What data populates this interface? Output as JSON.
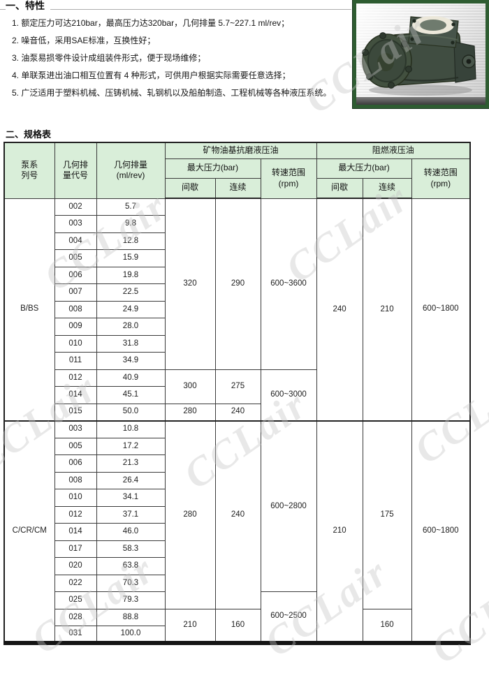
{
  "sections": {
    "features_title": "一、特性",
    "spec_title": "二、规格表"
  },
  "features": {
    "items": [
      "1. 额定压力可达210bar，最高压力达320bar，几何排量 5.7~227.1 ml/rev；",
      "2. 噪音低，采用SAE标准，互换性好；",
      "3. 油泵易损零件设计成组装件形式，便于现场维修；",
      "4. 单联泵进出油口相互位置有 4 种形式，可供用户根据实际需要任意选择；",
      "5. 广泛适用于塑料机械、压铸机械、轧钢机以及船舶制造、工程机械等各种液压系统。"
    ]
  },
  "watermark": {
    "text": "CCLair"
  },
  "photo": {
    "name": "vane-pump-photo",
    "frame_color": "#2e5c31"
  },
  "colors": {
    "header_bg": "#d9eed9",
    "table_border": "#3a3a3a",
    "watermark": "#c4c4c4"
  },
  "spec_table": {
    "header": {
      "pump_series": "泵系\n列号",
      "displacement_code": "几何排\n量代号",
      "displacement": "几何排量\n(ml/rev)",
      "mineral_oil_group": "矿物油基抗磨液压油",
      "fire_resistant_group": "阻燃液压油",
      "max_pressure": "最大压力(bar)",
      "speed_range": "转速范围\n(rpm)",
      "intermittent": "间歇",
      "continuous": "连续"
    },
    "rows": [
      {
        "cells": [
          {
            "v": "B/BS",
            "rs": 13,
            "name": "series-label"
          },
          {
            "v": "002"
          },
          {
            "v": "5.7"
          },
          {
            "v": "320",
            "rs": 10
          },
          {
            "v": "290",
            "rs": 10
          },
          {
            "v": "600~3600",
            "rs": 10
          },
          {
            "v": "240",
            "rs": 13
          },
          {
            "v": "210",
            "rs": 13
          },
          {
            "v": "600~1800",
            "rs": 13
          }
        ]
      },
      {
        "cells": [
          {
            "v": "003"
          },
          {
            "v": "9.8"
          }
        ]
      },
      {
        "cells": [
          {
            "v": "004"
          },
          {
            "v": "12.8"
          }
        ]
      },
      {
        "cells": [
          {
            "v": "005"
          },
          {
            "v": "15.9"
          }
        ]
      },
      {
        "cells": [
          {
            "v": "006"
          },
          {
            "v": "19.8"
          }
        ]
      },
      {
        "cells": [
          {
            "v": "007"
          },
          {
            "v": "22.5"
          }
        ]
      },
      {
        "cells": [
          {
            "v": "008"
          },
          {
            "v": "24.9"
          }
        ]
      },
      {
        "cells": [
          {
            "v": "009"
          },
          {
            "v": "28.0"
          }
        ]
      },
      {
        "cells": [
          {
            "v": "010"
          },
          {
            "v": "31.8"
          }
        ]
      },
      {
        "cells": [
          {
            "v": "011"
          },
          {
            "v": "34.9"
          }
        ]
      },
      {
        "cells": [
          {
            "v": "012"
          },
          {
            "v": "40.9"
          },
          {
            "v": "300",
            "rs": 2
          },
          {
            "v": "275",
            "rs": 2
          },
          {
            "v": "600~3000",
            "rs": 3
          }
        ]
      },
      {
        "cells": [
          {
            "v": "014"
          },
          {
            "v": "45.1"
          }
        ]
      },
      {
        "cells": [
          {
            "v": "015"
          },
          {
            "v": "50.0"
          },
          {
            "v": "280"
          },
          {
            "v": "240"
          }
        ]
      },
      {
        "section_start": true,
        "cells": [
          {
            "v": "C/CR/CM",
            "rs": 13,
            "name": "series-label"
          },
          {
            "v": "003"
          },
          {
            "v": "10.8"
          },
          {
            "v": "280",
            "rs": 11
          },
          {
            "v": "240",
            "rs": 11
          },
          {
            "v": "600~2800",
            "rs": 10
          },
          {
            "v": "210",
            "rs": 13
          },
          {
            "v": "175",
            "rs": 11
          },
          {
            "v": "600~1800",
            "rs": 13
          }
        ]
      },
      {
        "cells": [
          {
            "v": "005"
          },
          {
            "v": "17.2"
          }
        ]
      },
      {
        "cells": [
          {
            "v": "006"
          },
          {
            "v": "21.3"
          }
        ]
      },
      {
        "cells": [
          {
            "v": "008"
          },
          {
            "v": "26.4"
          }
        ]
      },
      {
        "cells": [
          {
            "v": "010"
          },
          {
            "v": "34.1"
          }
        ]
      },
      {
        "cells": [
          {
            "v": "012"
          },
          {
            "v": "37.1"
          }
        ]
      },
      {
        "cells": [
          {
            "v": "014"
          },
          {
            "v": "46.0"
          }
        ]
      },
      {
        "cells": [
          {
            "v": "017"
          },
          {
            "v": "58.3"
          }
        ]
      },
      {
        "cells": [
          {
            "v": "020"
          },
          {
            "v": "63.8"
          }
        ]
      },
      {
        "cells": [
          {
            "v": "022"
          },
          {
            "v": "70.3"
          }
        ]
      },
      {
        "cells": [
          {
            "v": "025"
          },
          {
            "v": "79.3"
          },
          {
            "v": "600~2500",
            "rs": 3
          }
        ]
      },
      {
        "cells": [
          {
            "v": "028"
          },
          {
            "v": "88.8"
          },
          {
            "v": "210",
            "rs": 2
          },
          {
            "v": "160",
            "rs": 2
          },
          {
            "v": "160",
            "rs": 2
          }
        ]
      },
      {
        "cells": [
          {
            "v": "031"
          },
          {
            "v": "100.0"
          }
        ]
      }
    ]
  }
}
